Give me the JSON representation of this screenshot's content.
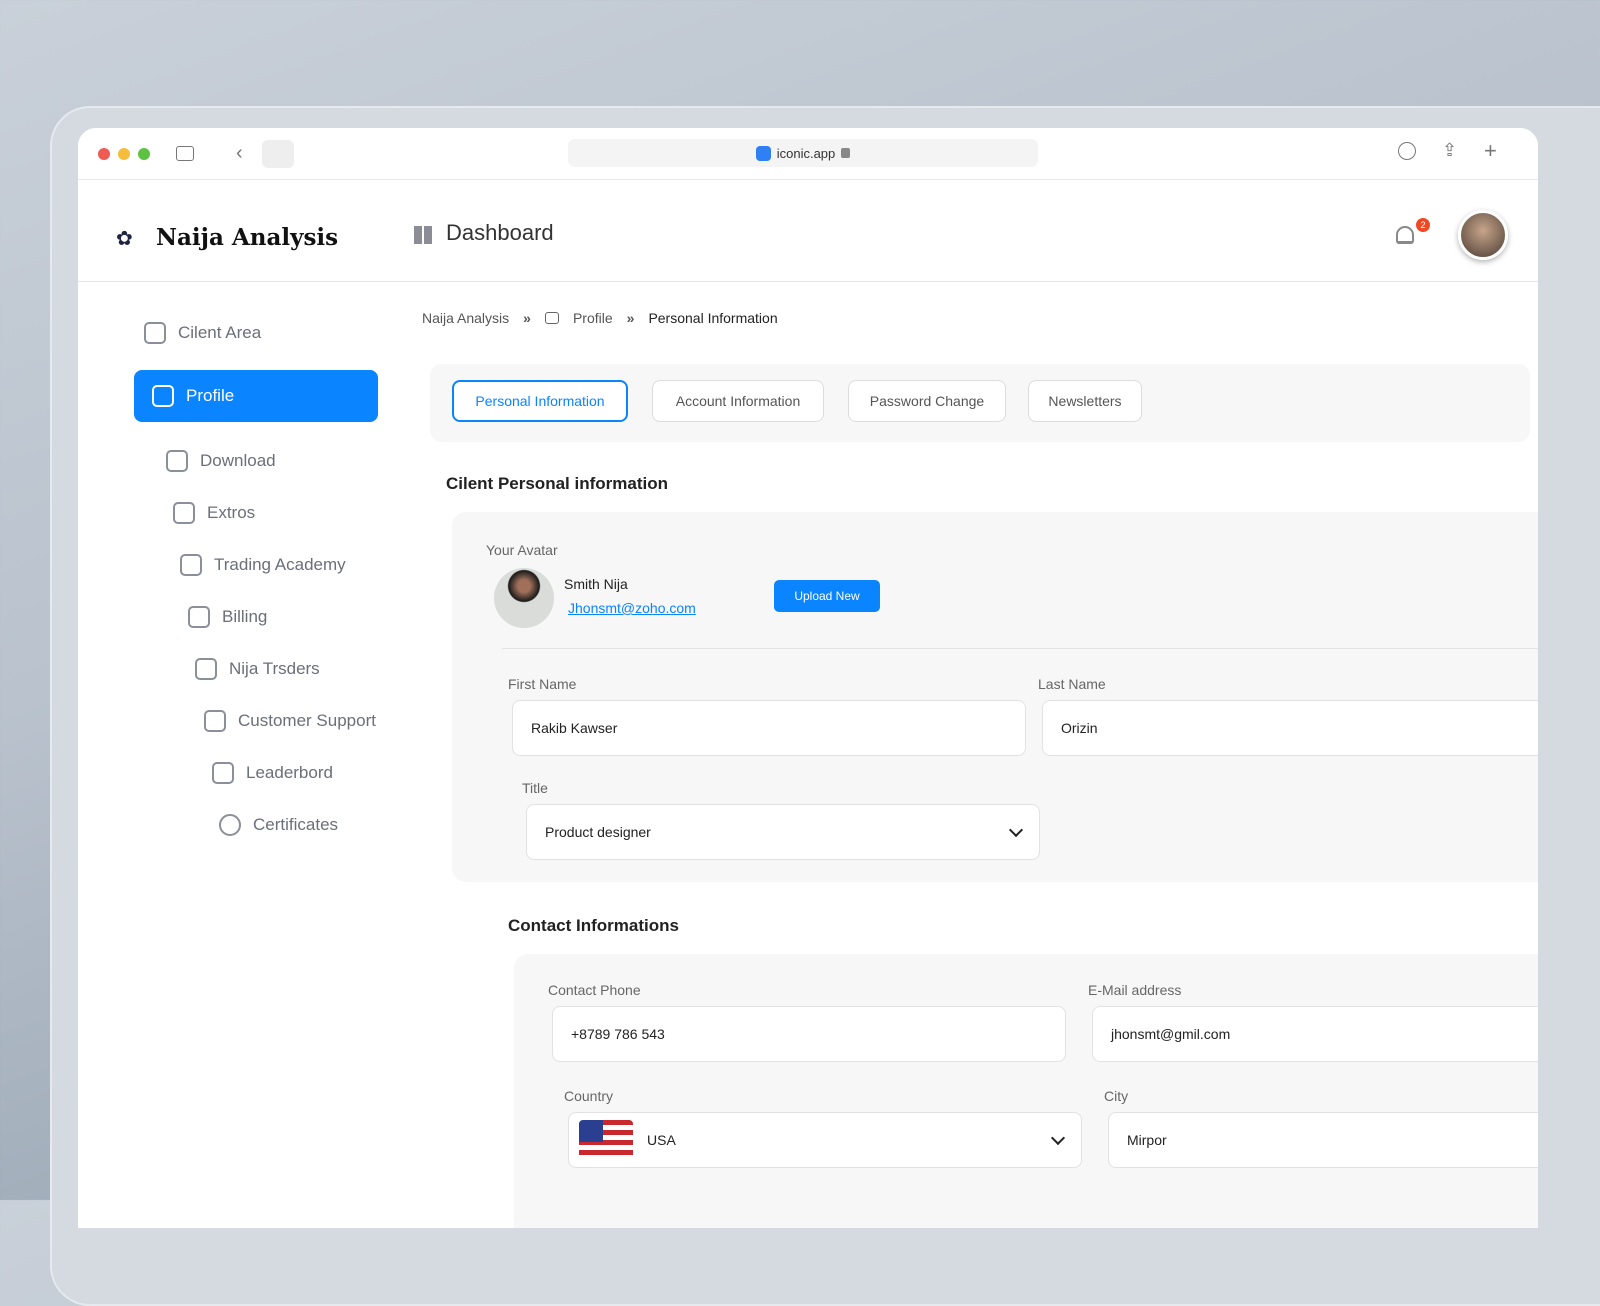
{
  "browser": {
    "url": "iconic.app"
  },
  "header": {
    "brand": "Naija Analysis",
    "title": "Dashboard",
    "notification_count": "2"
  },
  "sidebar": {
    "items": [
      {
        "label": "Cilent Area"
      },
      {
        "label": "Profile",
        "active": true
      },
      {
        "label": "Download"
      },
      {
        "label": "Extros"
      },
      {
        "label": "Trading Academy"
      },
      {
        "label": "Billing"
      },
      {
        "label": "Nija Trsders"
      },
      {
        "label": "Customer Support"
      },
      {
        "label": "Leaderbord"
      },
      {
        "label": "Certificates"
      }
    ]
  },
  "breadcrumb": [
    "Naija Analysis",
    "Profile",
    "Personal Information"
  ],
  "tabs": [
    {
      "label": "Personal Information",
      "active": true
    },
    {
      "label": "Account Information"
    },
    {
      "label": "Password Change"
    },
    {
      "label": "Newsletters"
    }
  ],
  "personal": {
    "heading": "Cilent Personal information",
    "avatar_label": "Your Avatar",
    "name": "Smith Nija",
    "email": "Jhonsmt@zoho.com",
    "upload_label": "Upload New",
    "first_name_label": "First Name",
    "first_name": "Rakib Kawser",
    "last_name_label": "Last Name",
    "last_name": "Orizin",
    "title_label": "Title",
    "title": "Product designer"
  },
  "contact": {
    "heading": "Contact Informations",
    "phone_label": "Contact Phone",
    "phone": "+8789 786 543",
    "email_label": "E-Mail address",
    "email": "jhonsmt@gmil.com",
    "country_label": "Country",
    "country": "USA",
    "city_label": "City",
    "city": "Mirpor"
  },
  "colors": {
    "accent": "#0a84ff"
  }
}
